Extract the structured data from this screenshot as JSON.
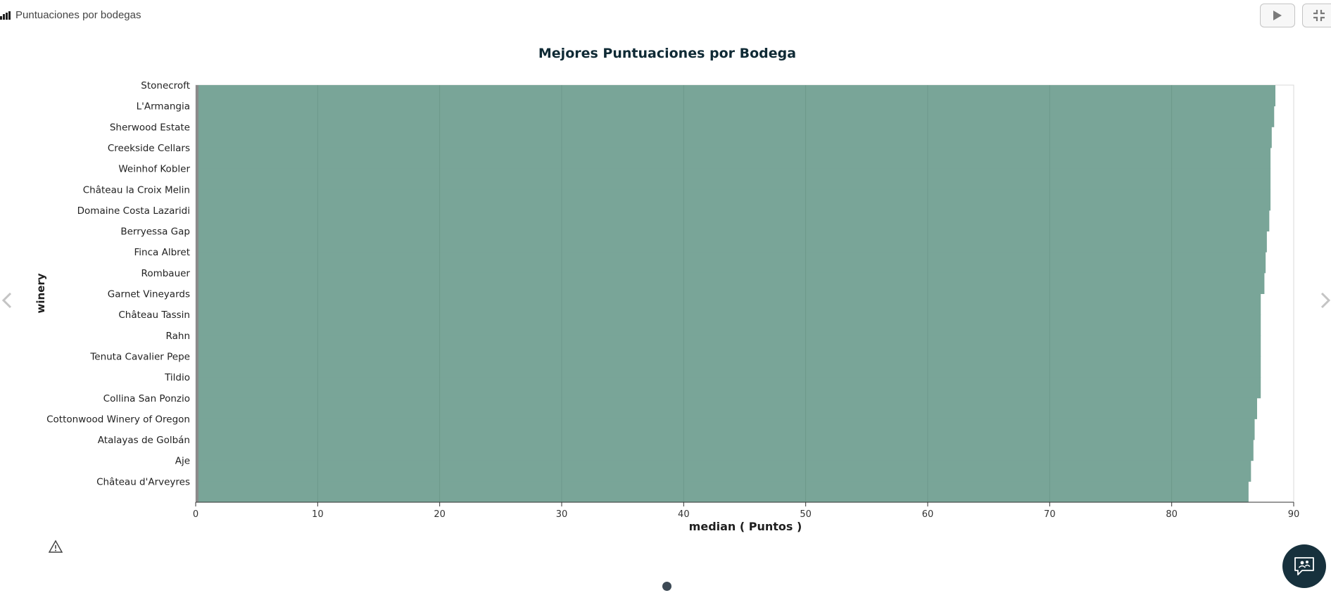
{
  "app": {
    "title": "Puntuaciones por bodegas"
  },
  "icons": {
    "app": "bar-chart-icon",
    "play": "play-icon",
    "collapse": "collapse-icon",
    "prev": "chevron-left-icon",
    "next": "chevron-right-icon",
    "warning": "warning-icon",
    "chat": "chat-icon"
  },
  "colors": {
    "bar": "#79a598",
    "bar_stroke": "#6d9a8c",
    "grid": "#5f8a7d",
    "zero_band": "#8a8a8a",
    "title": "#0f2a35",
    "chat_bg": "#17313d"
  },
  "chart_data": {
    "type": "bar",
    "orientation": "horizontal",
    "title": "Mejores Puntuaciones por Bodega",
    "xlabel": "median ( Puntos )",
    "ylabel": "winery",
    "xlim": [
      0,
      90
    ],
    "xticks": [
      0,
      10,
      20,
      30,
      40,
      50,
      60,
      70,
      80,
      90
    ],
    "grid": true,
    "categories": [
      "Stonecroft",
      "L'Armangia",
      "Sherwood Estate",
      "Creekside Cellars",
      "Weinhof Kobler",
      "Château la Croix Melin",
      "Domaine Costa Lazaridi",
      "Berryessa Gap",
      "Finca Albret",
      "Rombauer",
      "Garnet Vineyards",
      "Château Tassin",
      "Rahn",
      "Tenuta Cavalier Pepe",
      "Tildio",
      "Collina San Ponzio",
      "Cottonwood Winery of Oregon",
      "Atalayas de Golbán",
      "Aje",
      "Château d'Arveyres"
    ],
    "values": [
      88.5,
      88.4,
      88.2,
      88.1,
      88.1,
      88.1,
      88.0,
      87.8,
      87.7,
      87.6,
      87.3,
      87.3,
      87.3,
      87.3,
      87.3,
      87.0,
      86.8,
      86.7,
      86.5,
      86.3
    ]
  }
}
